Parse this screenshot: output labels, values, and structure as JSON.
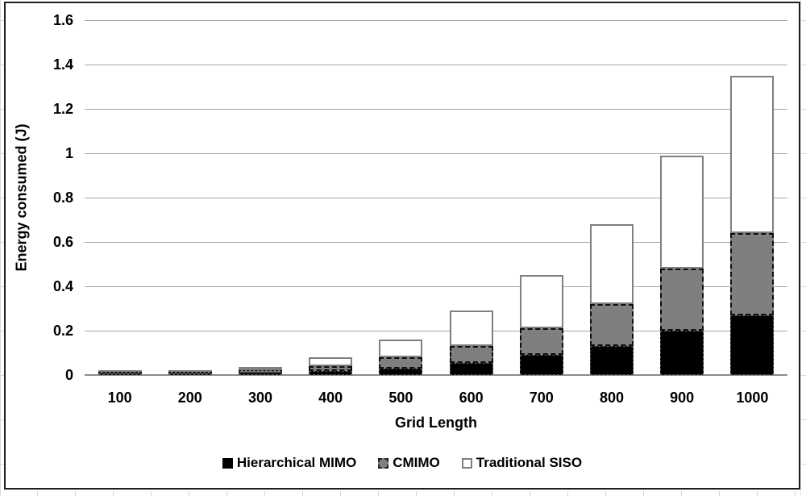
{
  "chart": {
    "frame_border_color": "#1f1f1f",
    "gridline_color": "#a6a6a6",
    "axis_line_color": "#8c8c8c",
    "background": "#ffffff",
    "text_color": "#000000"
  },
  "chart_data": {
    "type": "bar",
    "stacked": true,
    "title": "",
    "xlabel": "Grid Length",
    "ylabel": "Energy consumed (J)",
    "categories": [
      "100",
      "200",
      "300",
      "400",
      "500",
      "600",
      "700",
      "800",
      "900",
      "1000"
    ],
    "series": [
      {
        "name": "Hierarchical MIMO",
        "color": "#000000",
        "values": [
          0.003,
          0.005,
          0.012,
          0.02,
          0.03,
          0.055,
          0.09,
          0.13,
          0.2,
          0.27
        ]
      },
      {
        "name": "CMIMO",
        "color": "#7f7f7f",
        "values": [
          0.002,
          0.004,
          0.01,
          0.02,
          0.05,
          0.075,
          0.12,
          0.19,
          0.28,
          0.37
        ]
      },
      {
        "name": "Traditional SISO",
        "color": "#ffffff",
        "values": [
          0.003,
          0.004,
          0.013,
          0.04,
          0.08,
          0.16,
          0.24,
          0.36,
          0.51,
          0.71
        ]
      }
    ],
    "totals": [
      0.008,
      0.013,
      0.035,
      0.08,
      0.16,
      0.29,
      0.45,
      0.68,
      0.99,
      1.35
    ],
    "ylim": [
      0,
      1.6
    ],
    "ytick_step": 0.2,
    "yticks": [
      "0",
      "0.2",
      "0.4",
      "0.6",
      "0.8",
      "1",
      "1.2",
      "1.4",
      "1.6"
    ],
    "grid": true,
    "legend_position": "bottom"
  }
}
